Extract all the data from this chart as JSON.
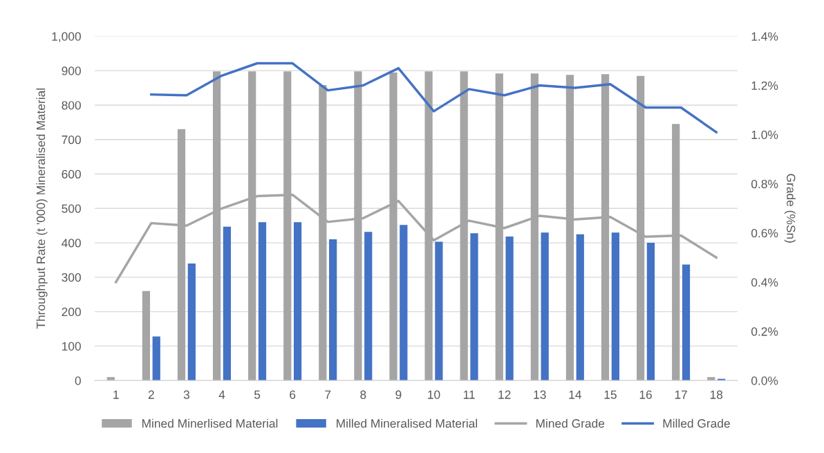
{
  "chart_data": {
    "type": "bar",
    "ylabel": "Throughput Rate (t '000) Mineralised Material",
    "y2label": "Grade (%Sn)",
    "categories": [
      "1",
      "2",
      "3",
      "4",
      "5",
      "6",
      "7",
      "8",
      "9",
      "10",
      "11",
      "12",
      "13",
      "14",
      "15",
      "16",
      "17",
      "18"
    ],
    "series": [
      {
        "name": "Mined Minerlised Material",
        "color": "#a5a5a5",
        "values": [
          10,
          260,
          730,
          898,
          898,
          898,
          858,
          898,
          895,
          898,
          898,
          892,
          892,
          888,
          890,
          885,
          745,
          10
        ]
      },
      {
        "name": "Milled Mineralised Material",
        "color": "#4472c4",
        "values": [
          0,
          128,
          340,
          447,
          460,
          460,
          410,
          432,
          452,
          403,
          428,
          418,
          430,
          425,
          430,
          400,
          337,
          5
        ]
      },
      {
        "name": "Mined Grade",
        "color": "#a5a5a5",
        "type": "line",
        "axis": "y2",
        "values": [
          0.4,
          0.64,
          0.63,
          0.7,
          0.75,
          0.755,
          0.645,
          0.66,
          0.73,
          0.57,
          0.65,
          0.62,
          0.67,
          0.655,
          0.665,
          0.585,
          0.59,
          0.5
        ]
      },
      {
        "name": "Milled Grade",
        "color": "#4472c4",
        "type": "line",
        "axis": "y2",
        "values": [
          null,
          1.163,
          1.16,
          1.24,
          1.29,
          1.29,
          1.18,
          1.2,
          1.27,
          1.095,
          1.185,
          1.16,
          1.2,
          1.19,
          1.205,
          1.11,
          1.11,
          1.01
        ]
      }
    ],
    "ylim": [
      0,
      1000
    ],
    "yticks": [
      0,
      100,
      200,
      300,
      400,
      500,
      600,
      700,
      800,
      900,
      {
        "value": 1000,
        "label": "1,000"
      }
    ],
    "y2lim": [
      0,
      1.4
    ],
    "y2ticks": [
      {
        "value": 0,
        "label": "0.0%"
      },
      {
        "value": 0.2,
        "label": "0.2%"
      },
      {
        "value": 0.4,
        "label": "0.4%"
      },
      {
        "value": 0.6,
        "label": "0.6%"
      },
      {
        "value": 0.8,
        "label": "0.8%"
      },
      {
        "value": 1.0,
        "label": "1.0%"
      },
      {
        "value": 1.2,
        "label": "1.2%"
      },
      {
        "value": 1.4,
        "label": "1.4%"
      }
    ],
    "grid": "y",
    "legend": "bottom"
  }
}
